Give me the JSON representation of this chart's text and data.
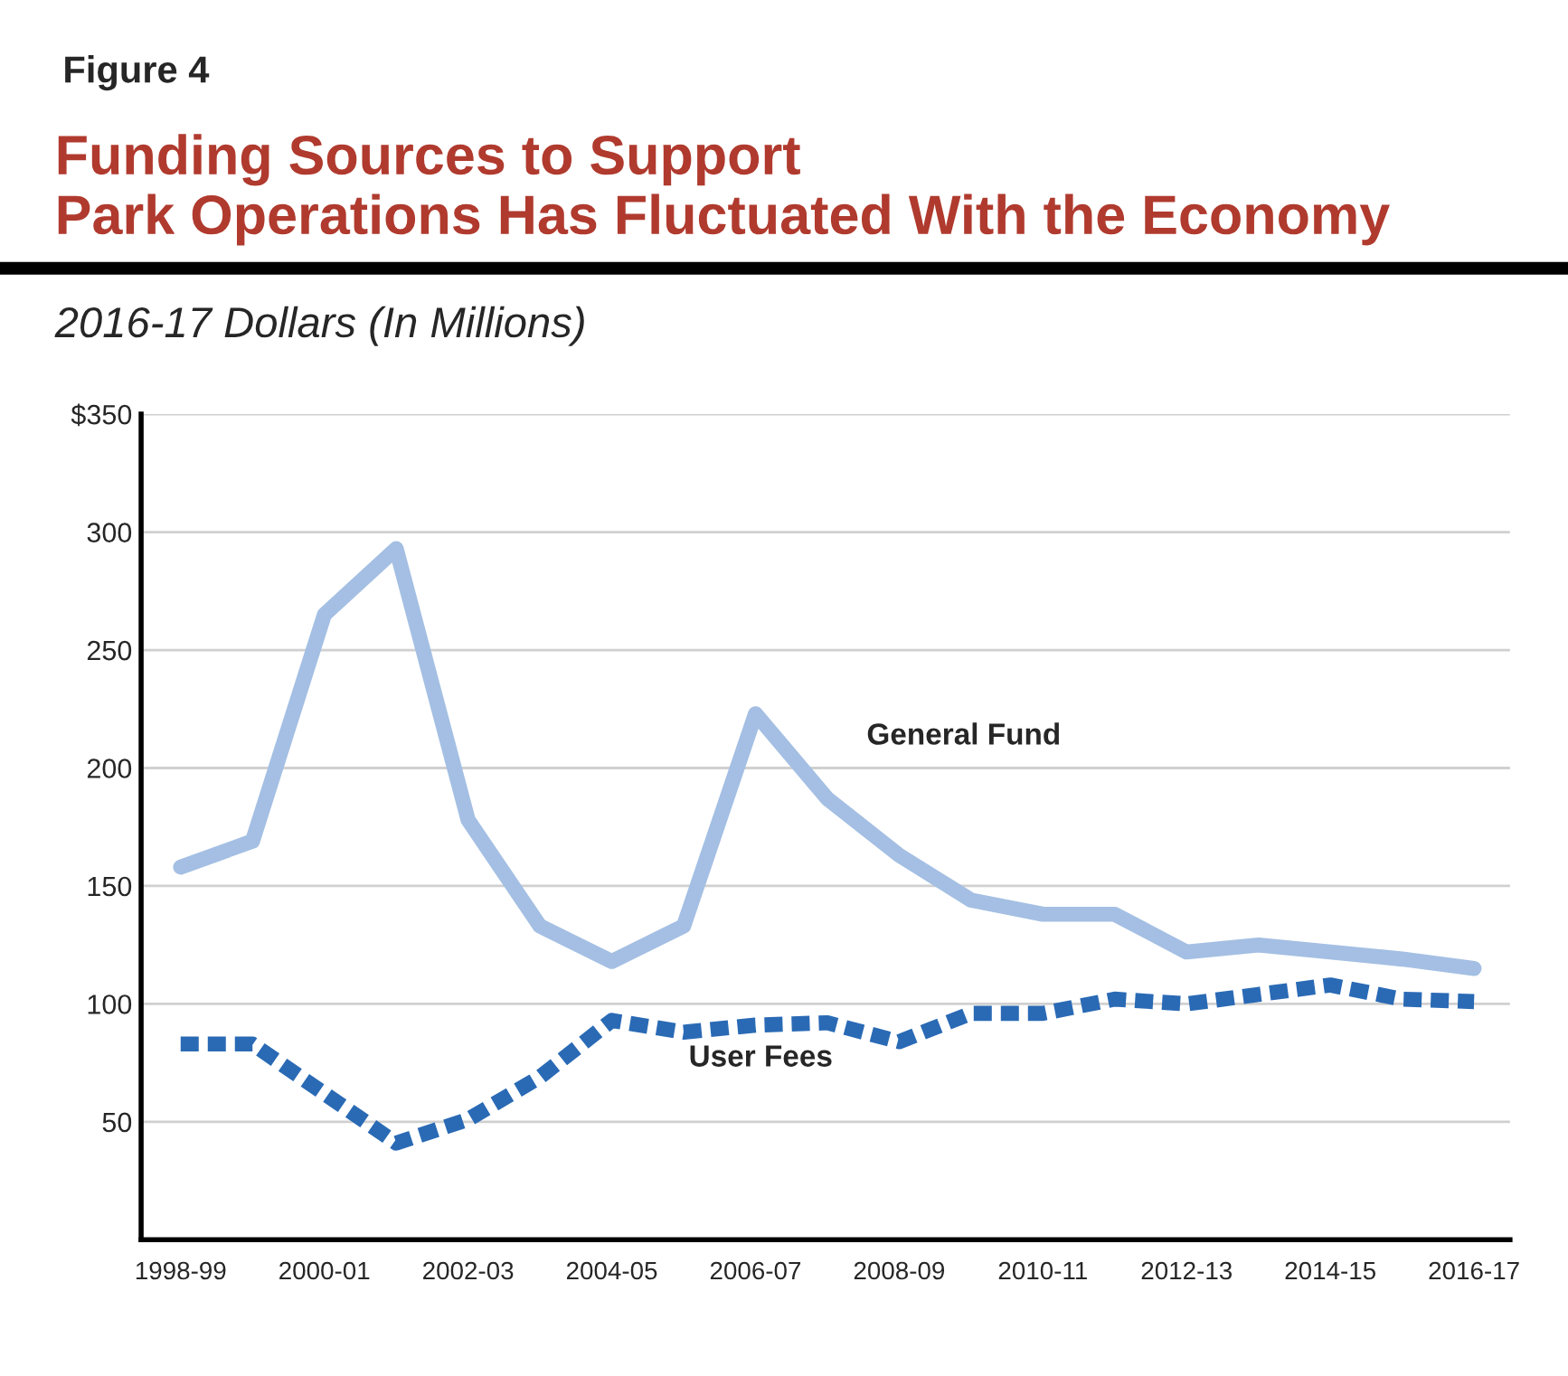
{
  "chart_data": {
    "type": "line",
    "title": "Funding Sources to Support\nPark Operations Has Fluctuated With the Economy",
    "subtitle": "2016-17 Dollars (In Millions)",
    "annotations": [
      "Figure 4"
    ],
    "categories": [
      "1998-99",
      null,
      "2000-01",
      null,
      "2002-03",
      null,
      "2004-05",
      null,
      "2006-07",
      null,
      "2008-09",
      null,
      "2010-11",
      null,
      "2012-13",
      null,
      "2014-15",
      null,
      "2016-17"
    ],
    "series": [
      {
        "name": "General Fund",
        "color": "#a4bfe3",
        "line_style": "solid",
        "values": [
          158,
          169,
          265,
          293,
          178,
          133,
          118,
          133,
          223,
          187,
          163,
          144,
          138,
          138,
          122,
          125,
          122,
          119,
          115
        ]
      },
      {
        "name": "User Fees",
        "color": "#2a6ab5",
        "line_style": "dotted",
        "values": [
          83,
          83,
          62,
          41,
          51,
          69,
          93,
          88,
          91,
          92,
          84,
          96,
          96,
          102,
          100,
          104,
          108,
          102,
          101
        ]
      }
    ],
    "ylim": [
      0,
      350
    ],
    "yticks": [
      50,
      100,
      150,
      200,
      250,
      300,
      {
        "value": 350,
        "label": "$350"
      }
    ],
    "grid": "y",
    "legend": false
  }
}
